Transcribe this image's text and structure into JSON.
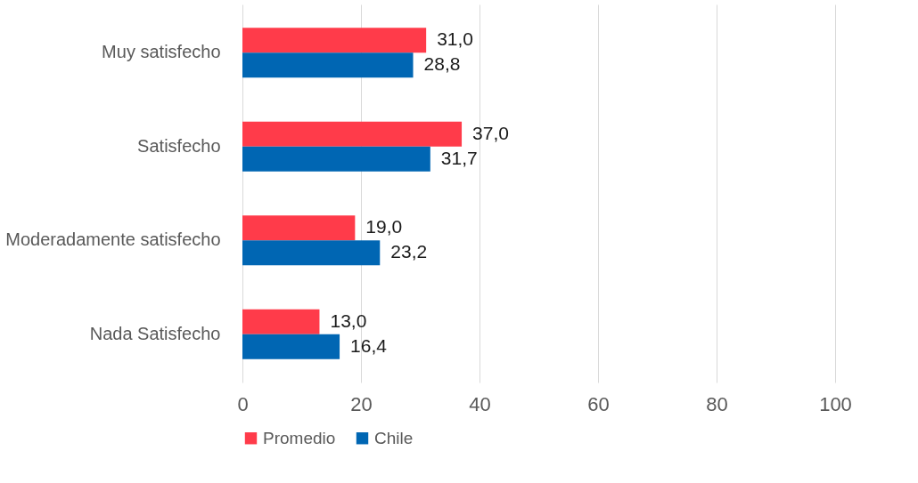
{
  "chart_data": {
    "type": "bar",
    "orientation": "horizontal",
    "categories": [
      "Muy satisfecho",
      "Satisfecho",
      "Moderadamente satisfecho",
      "Nada Satisfecho"
    ],
    "series": [
      {
        "name": "Promedio",
        "color": "#ff3b4a",
        "values": [
          31.0,
          37.0,
          19.0,
          13.0
        ],
        "value_labels": [
          "31,0",
          "37,0",
          "19,0",
          "13,0"
        ]
      },
      {
        "name": "Chile",
        "color": "#0066b3",
        "values": [
          28.8,
          31.7,
          23.2,
          16.4
        ],
        "value_labels": [
          "28,8",
          "31,7",
          "23,2",
          "16,4"
        ]
      }
    ],
    "xlim": [
      0,
      100
    ],
    "xticks": [
      0,
      20,
      40,
      60,
      80,
      100
    ],
    "grid": "x",
    "legend": "bottom"
  }
}
